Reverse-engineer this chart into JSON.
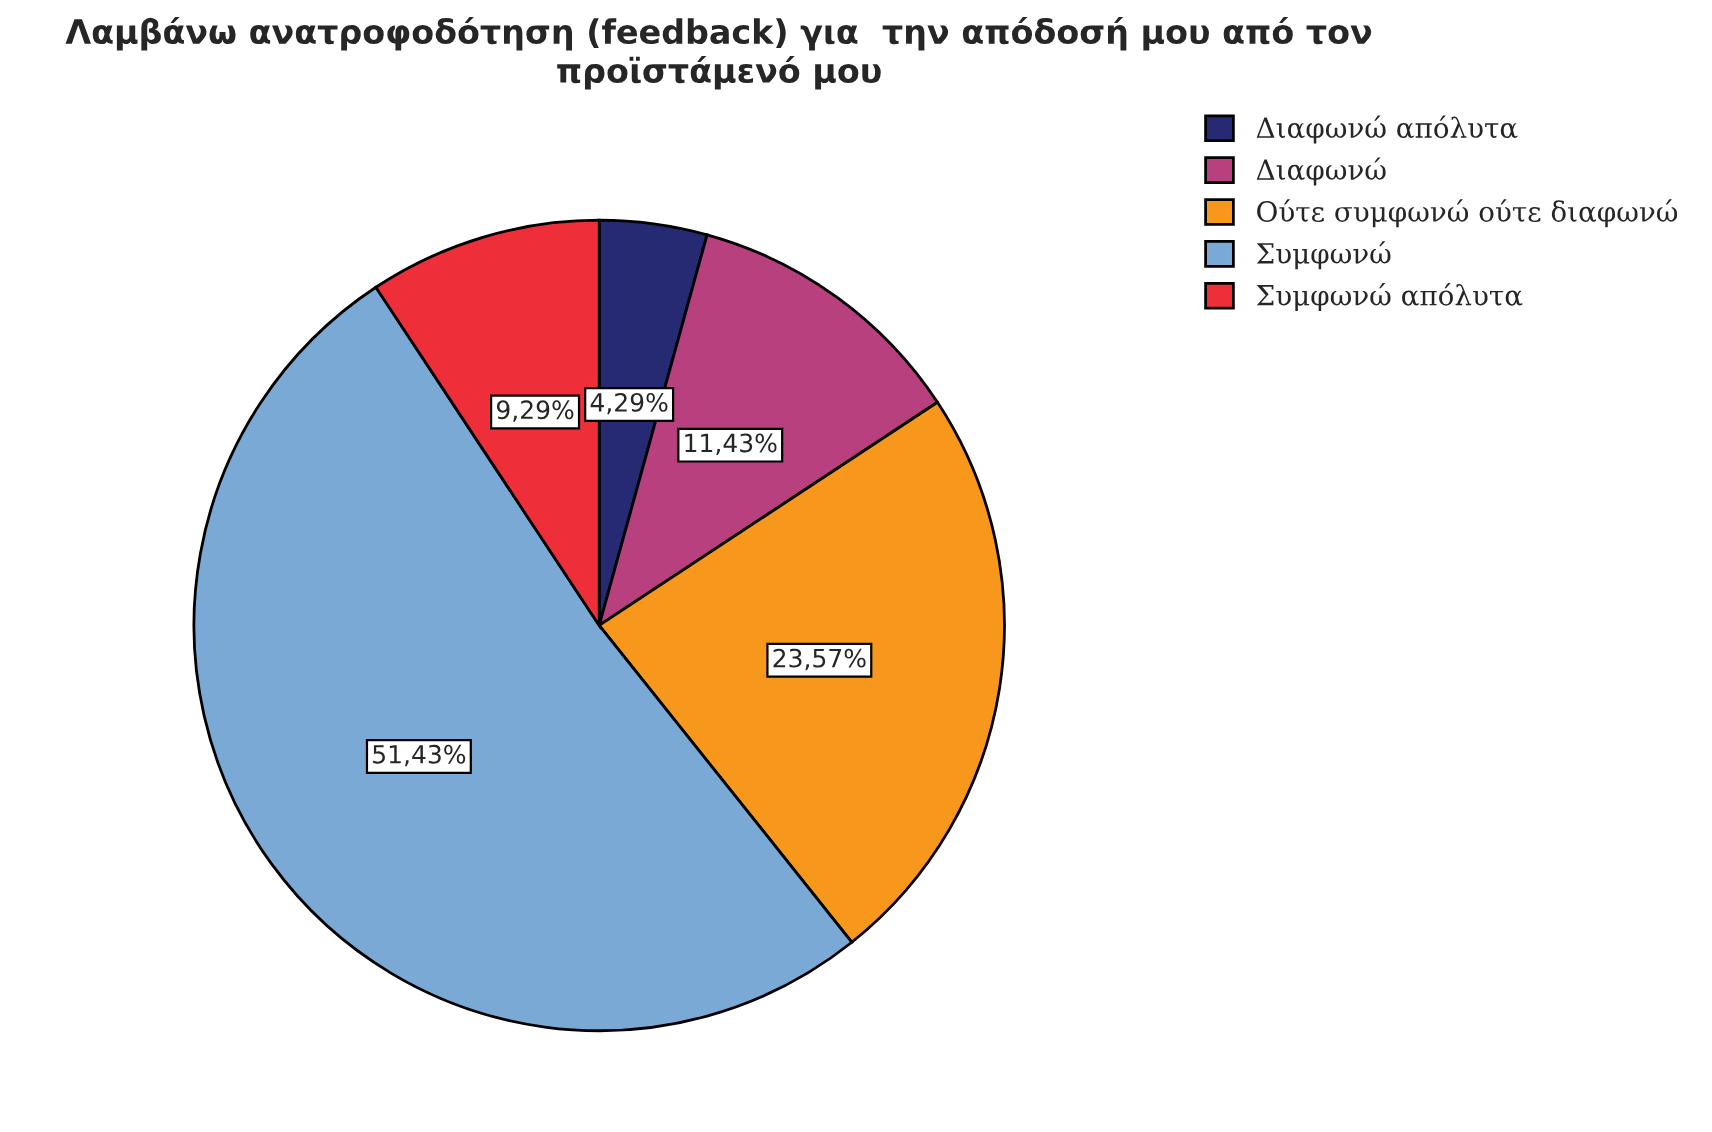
{
  "chart_data": {
    "type": "pie",
    "title": "Λαμβάνω ανατροφοδότηση (feedback) για  την απόδοσή μου από τον προϊστάμενό μου",
    "categories": [
      "Διαφωνώ απόλυτα",
      "Διαφωνώ",
      "Ούτε συμφωνώ ούτε διαφωνώ",
      "Συμφωνώ",
      "Συμφωνώ απόλυτα"
    ],
    "values": [
      4.29,
      11.43,
      23.57,
      51.43,
      9.29
    ],
    "colors": [
      "#262a73",
      "#b8407f",
      "#f7981d",
      "#7aa9d6",
      "#ee2f3a"
    ],
    "value_labels": [
      "4,29%",
      "11,43%",
      "23,57%",
      "51,43%",
      "9,29%"
    ],
    "legend": "top right"
  }
}
